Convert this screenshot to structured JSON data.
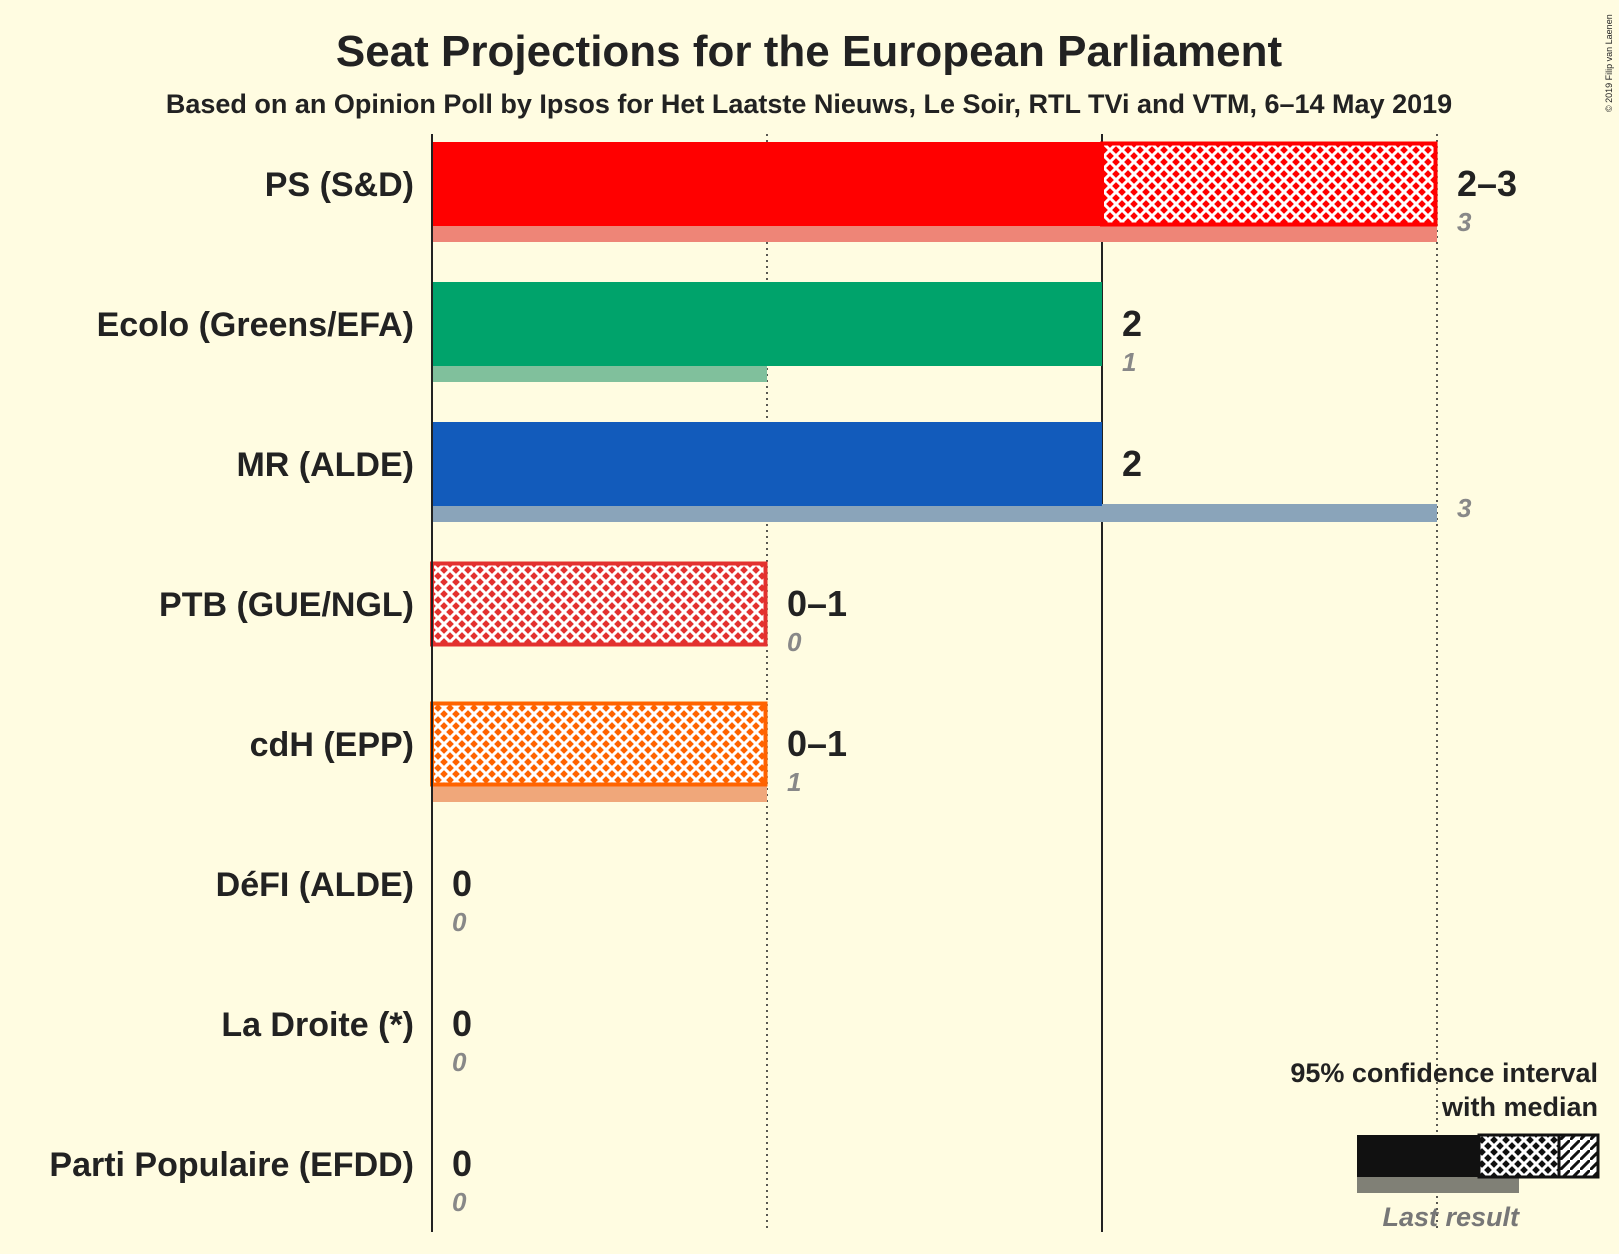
{
  "title": "Seat Projections for the European Parliament",
  "subtitle": "Based on an Opinion Poll by Ipsos for Het Laatste Nieuws, Le Soir, RTL TVi and VTM, 6–14 May 2019",
  "copyright": "© 2019 Filip van Laenen",
  "legend": {
    "ci_line1": "95% confidence interval",
    "ci_line2": "with median",
    "last_result": "Last result"
  },
  "chart_data": {
    "type": "bar",
    "xlim": [
      0,
      3
    ],
    "gridlines": [
      1,
      2,
      3
    ],
    "series": [
      {
        "party": "PS (S&D)",
        "lower": 2,
        "median": 2,
        "upper": 3,
        "range_label": "2–3",
        "last": 3,
        "last_label": "3",
        "color": "#FF0000",
        "last_color": "#EE8577"
      },
      {
        "party": "Ecolo (Greens/EFA)",
        "lower": 2,
        "median": 2,
        "upper": 2,
        "range_label": "2",
        "last": 1,
        "last_label": "1",
        "color": "#00A36B",
        "last_color": "#80C09C"
      },
      {
        "party": "MR (ALDE)",
        "lower": 2,
        "median": 2,
        "upper": 2,
        "range_label": "2",
        "last": 3,
        "last_label": "3",
        "color": "#125BBB",
        "last_color": "#8AA4BA"
      },
      {
        "party": "PTB (GUE/NGL)",
        "lower": 0,
        "median": 0,
        "upper": 1,
        "range_label": "0–1",
        "last": 0,
        "last_label": "0",
        "color": "#E3312F",
        "last_color": "#EE9A8F"
      },
      {
        "party": "cdH (EPP)",
        "lower": 0,
        "median": 0,
        "upper": 1,
        "range_label": "0–1",
        "last": 1,
        "last_label": "1",
        "color": "#FF6300",
        "last_color": "#F0A77A"
      },
      {
        "party": "DéFI (ALDE)",
        "lower": 0,
        "median": 0,
        "upper": 0,
        "range_label": "0",
        "last": 0,
        "last_label": "0",
        "color": "#D5207C",
        "last_color": "#E09AB8"
      },
      {
        "party": "La Droite (*)",
        "lower": 0,
        "median": 0,
        "upper": 0,
        "range_label": "0",
        "last": 0,
        "last_label": "0",
        "color": "#1565C0",
        "last_color": "#88A0C0"
      },
      {
        "party": "Parti Populaire (EFDD)",
        "lower": 0,
        "median": 0,
        "upper": 0,
        "range_label": "0",
        "last": 0,
        "last_label": "0",
        "color": "#3A3A8C",
        "last_color": "#9A9AC0"
      }
    ]
  }
}
